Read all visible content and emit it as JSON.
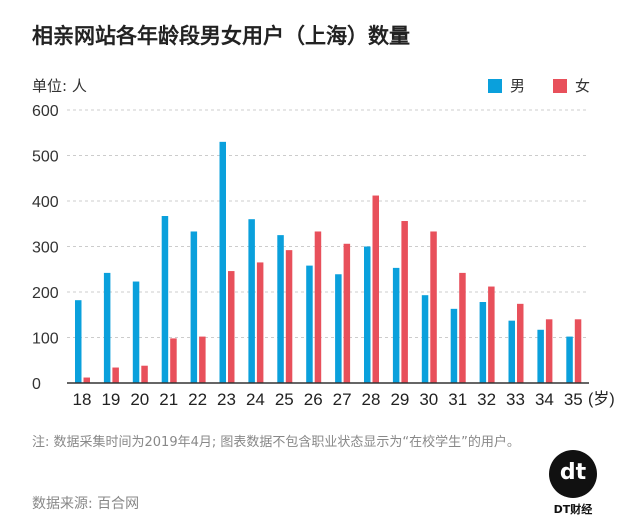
{
  "chart_data": {
    "type": "bar",
    "title": "相亲网站各年龄段男女用户（上海）数量",
    "ylabel": "单位: 人",
    "xlabel": "(岁)",
    "ylim": [
      0,
      600
    ],
    "yticks": [
      0,
      100,
      200,
      300,
      400,
      500,
      600
    ],
    "grid": true,
    "legend_position": "top-right",
    "categories": [
      "18",
      "19",
      "20",
      "21",
      "22",
      "23",
      "24",
      "25",
      "26",
      "27",
      "28",
      "29",
      "30",
      "31",
      "32",
      "33",
      "34",
      "35"
    ],
    "series": [
      {
        "name": "男",
        "color": "#0aa0dc",
        "values": [
          182,
          242,
          223,
          367,
          333,
          530,
          360,
          325,
          258,
          239,
          300,
          253,
          193,
          163,
          178,
          137,
          117,
          102
        ]
      },
      {
        "name": "女",
        "color": "#e8505b",
        "values": [
          12,
          34,
          38,
          98,
          102,
          246,
          265,
          292,
          333,
          306,
          412,
          356,
          333,
          242,
          212,
          174,
          140,
          140
        ]
      }
    ]
  },
  "note": "注: 数据采集时间为2019年4月; 图表数据不包含职业状态显示为“在校学生”的用户。",
  "source": "数据来源: 百合网",
  "logo": {
    "mark": "dt",
    "text": "DT财经"
  }
}
